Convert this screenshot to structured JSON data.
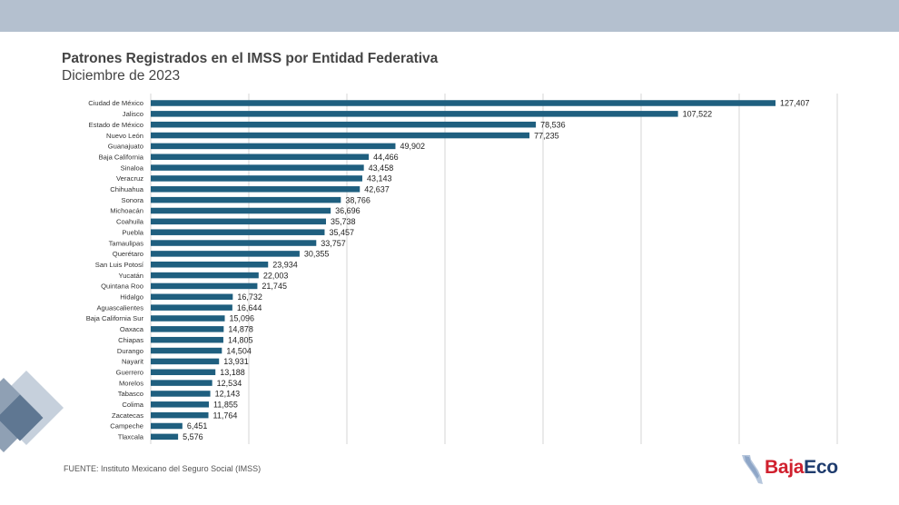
{
  "header": {
    "title": "Patrones Registrados en el IMSS por Entidad Federativa",
    "subtitle": "Diciembre de 2023"
  },
  "footer": {
    "source": "FUENTE: Instituto Mexicano del Seguro Social (IMSS)"
  },
  "logo": {
    "part1": "Baja",
    "part2": "Eco",
    "color1": "#d0202e",
    "color2": "#1f3c6e"
  },
  "colors": {
    "bar": "#1f5f7f",
    "gridline": "#d4d4d4",
    "banner": "#b4c0cf"
  },
  "chart_data": {
    "type": "bar",
    "orientation": "horizontal",
    "xlim": [
      0,
      140000
    ],
    "grid": true,
    "categories": [
      "Ciudad de México",
      "Jalisco",
      "Estado de México",
      "Nuevo León",
      "Guanajuato",
      "Baja California",
      "Sinaloa",
      "Veracruz",
      "Chihuahua",
      "Sonora",
      "Michoacán",
      "Coahuila",
      "Puebla",
      "Tamaulipas",
      "Querétaro",
      "San Luis Potosí",
      "Yucatán",
      "Quintana Roo",
      "Hidalgo",
      "Aguascalientes",
      "Baja California Sur",
      "Oaxaca",
      "Chiapas",
      "Durango",
      "Nayarit",
      "Guerrero",
      "Morelos",
      "Tabasco",
      "Colima",
      "Zacatecas",
      "Campeche",
      "Tlaxcala"
    ],
    "values": [
      127407,
      107522,
      78536,
      77235,
      49902,
      44466,
      43458,
      43143,
      42637,
      38766,
      36696,
      35738,
      35457,
      33757,
      30355,
      23934,
      22003,
      21745,
      16732,
      16644,
      15096,
      14878,
      14805,
      14504,
      13931,
      13188,
      12534,
      12143,
      11855,
      11764,
      6451,
      5576
    ],
    "value_labels": [
      "127,407",
      "107,522",
      "78,536",
      "77,235",
      "49,902",
      "44,466",
      "43,458",
      "43,143",
      "42,637",
      "38,766",
      "36,696",
      "35,738",
      "35,457",
      "33,757",
      "30,355",
      "23,934",
      "22,003",
      "21,745",
      "16,732",
      "16,644",
      "15,096",
      "14,878",
      "14,805",
      "14,504",
      "13,931",
      "13,188",
      "12,534",
      "12,143",
      "11,855",
      "11,764",
      "6,451",
      "5,576"
    ]
  }
}
